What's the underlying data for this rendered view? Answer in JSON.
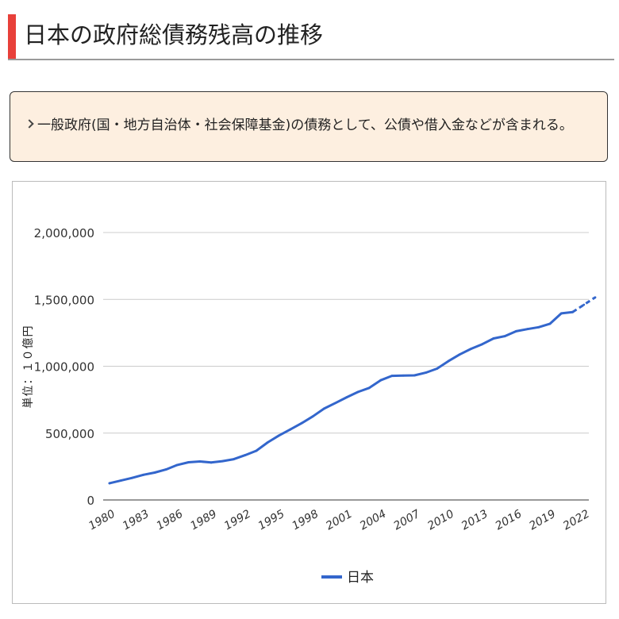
{
  "header": {
    "title": "日本の政府総債務残高の推移"
  },
  "note": {
    "text": "一般政府(国・地方自治体・社会保障基金)の債務として、公債や借入金などが含まれる。"
  },
  "colors": {
    "accent": "#e8403a",
    "note_background": "#fdefe0",
    "series": "#3366cc",
    "grid": "#cccccc"
  },
  "chart_data": {
    "type": "line",
    "ylabel": "単位：１０億円",
    "ylim": [
      0,
      2000000
    ],
    "yticks": [
      0,
      500000,
      1000000,
      1500000,
      2000000
    ],
    "ytick_labels": [
      "0",
      "500,000",
      "1,000,000",
      "1,500,000",
      "2,000,000"
    ],
    "xlim": [
      1980,
      2023
    ],
    "xticks": [
      1980,
      1983,
      1986,
      1989,
      1992,
      1995,
      1998,
      2001,
      2004,
      2007,
      2010,
      2013,
      2016,
      2019,
      2022
    ],
    "grid": true,
    "legend_position": "bottom",
    "series": [
      {
        "name": "日本",
        "x": [
          1980,
          1981,
          1982,
          1983,
          1984,
          1985,
          1986,
          1987,
          1988,
          1989,
          1990,
          1991,
          1992,
          1993,
          1994,
          1995,
          1996,
          1997,
          1998,
          1999,
          2000,
          2001,
          2002,
          2003,
          2004,
          2005,
          2006,
          2007,
          2008,
          2009,
          2010,
          2011,
          2012,
          2013,
          2014,
          2015,
          2016,
          2017,
          2018,
          2019,
          2020,
          2021,
          2022,
          2023
        ],
        "values": [
          125000,
          145000,
          165000,
          188000,
          205000,
          228000,
          262000,
          282000,
          288000,
          280000,
          290000,
          305000,
          335000,
          368000,
          430000,
          482000,
          527000,
          574000,
          625000,
          683000,
          725000,
          768000,
          808000,
          838000,
          895000,
          928000,
          930000,
          932000,
          952000,
          982000,
          1038000,
          1088000,
          1130000,
          1165000,
          1208000,
          1225000,
          1262000,
          1278000,
          1292000,
          1318000,
          1395000,
          1405000,
          1460000,
          1515000
        ],
        "estimated_from_x": 2021,
        "color": "#3366cc"
      }
    ]
  }
}
